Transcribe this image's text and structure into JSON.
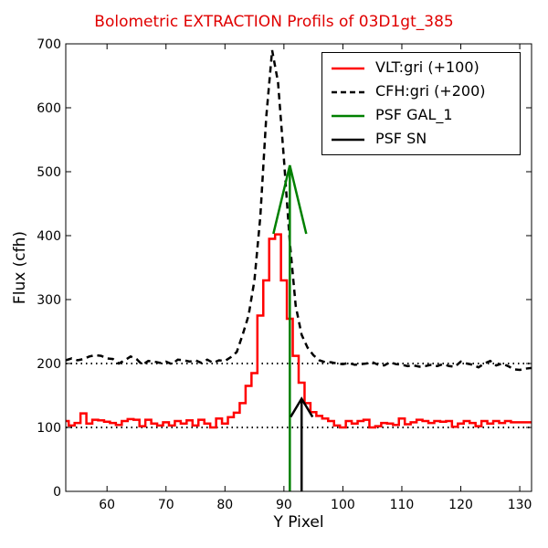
{
  "chart_data": {
    "type": "line",
    "title": "Bolometric EXTRACTION Profils of 03D1gt_385",
    "title_color": "#e00000",
    "xlabel": "Y Pixel",
    "ylabel": "Flux (cfh)",
    "xlim": [
      53,
      132
    ],
    "ylim": [
      0,
      700
    ],
    "xticks": [
      60,
      70,
      80,
      90,
      100,
      110,
      120,
      130
    ],
    "yticks": [
      0,
      100,
      200,
      300,
      400,
      500,
      600,
      700
    ],
    "grid": false,
    "legend_position": "top-right",
    "reference_lines": [
      {
        "y": 100,
        "style": "dotted",
        "color": "#000000"
      },
      {
        "y": 200,
        "style": "dotted",
        "color": "#000000"
      }
    ],
    "series": [
      {
        "name": "VLT:gri (+100)",
        "color": "#ff0000",
        "style": "steps",
        "x": [
          53,
          54,
          55,
          56,
          57,
          58,
          59,
          60,
          61,
          62,
          63,
          64,
          65,
          66,
          67,
          68,
          69,
          70,
          71,
          72,
          73,
          74,
          75,
          76,
          77,
          78,
          79,
          80,
          81,
          82,
          83,
          84,
          85,
          86,
          87,
          88,
          89,
          90,
          91,
          92,
          93,
          94,
          95,
          96,
          97,
          98,
          99,
          100,
          101,
          102,
          103,
          104,
          105,
          106,
          107,
          108,
          109,
          110,
          111,
          112,
          113,
          114,
          115,
          116,
          117,
          118,
          119,
          120,
          121,
          122,
          123,
          124,
          125,
          126,
          127,
          128,
          129,
          130,
          131,
          132
        ],
        "y": [
          110,
          103,
          107,
          122,
          106,
          112,
          111,
          109,
          107,
          104,
          110,
          113,
          112,
          102,
          112,
          106,
          103,
          108,
          103,
          110,
          106,
          111,
          103,
          112,
          106,
          100,
          114,
          106,
          116,
          123,
          138,
          165,
          185,
          275,
          330,
          395,
          402,
          330,
          270,
          212,
          170,
          138,
          124,
          118,
          114,
          110,
          103,
          100,
          110,
          106,
          110,
          112,
          100,
          102,
          107,
          106,
          104,
          114,
          105,
          108,
          112,
          110,
          107,
          110,
          109,
          110,
          101,
          106,
          110,
          107,
          102,
          110,
          106,
          110,
          107,
          110,
          108,
          108,
          108,
          108
        ]
      },
      {
        "name": "CFH:gri (+200)",
        "color": "#000000",
        "style": "dashed",
        "x": [
          53,
          54,
          55,
          56,
          57,
          58,
          59,
          60,
          61,
          62,
          63,
          64,
          65,
          66,
          67,
          68,
          69,
          70,
          71,
          72,
          73,
          74,
          75,
          76,
          77,
          78,
          79,
          80,
          81,
          82,
          83,
          84,
          85,
          86,
          87,
          88,
          89,
          90,
          91,
          92,
          93,
          94,
          95,
          96,
          97,
          98,
          99,
          100,
          101,
          102,
          103,
          104,
          105,
          106,
          107,
          108,
          109,
          110,
          111,
          112,
          113,
          114,
          115,
          116,
          117,
          118,
          119,
          120,
          121,
          122,
          123,
          124,
          125,
          126,
          127,
          128,
          129,
          130,
          131,
          132
        ],
        "y": [
          205,
          208,
          205,
          207,
          211,
          213,
          212,
          208,
          207,
          200,
          205,
          211,
          207,
          198,
          204,
          203,
          201,
          203,
          199,
          206,
          205,
          203,
          205,
          201,
          206,
          201,
          205,
          204,
          210,
          218,
          245,
          275,
          330,
          430,
          585,
          690,
          640,
          520,
          390,
          290,
          245,
          225,
          213,
          205,
          202,
          202,
          200,
          199,
          201,
          198,
          199,
          200,
          202,
          198,
          197,
          202,
          199,
          198,
          196,
          197,
          195,
          196,
          198,
          196,
          199,
          196,
          195,
          203,
          200,
          198,
          194,
          200,
          204,
          197,
          200,
          196,
          191,
          190,
          192,
          193
        ]
      },
      {
        "name": "PSF GAL_1",
        "color": "#008000",
        "style": "arrow",
        "x": 91,
        "y_from": 0,
        "y_to": 510
      },
      {
        "name": "PSF SN",
        "color": "#000000",
        "style": "arrow",
        "x": 93,
        "y_from": 0,
        "y_to": 145
      }
    ]
  }
}
